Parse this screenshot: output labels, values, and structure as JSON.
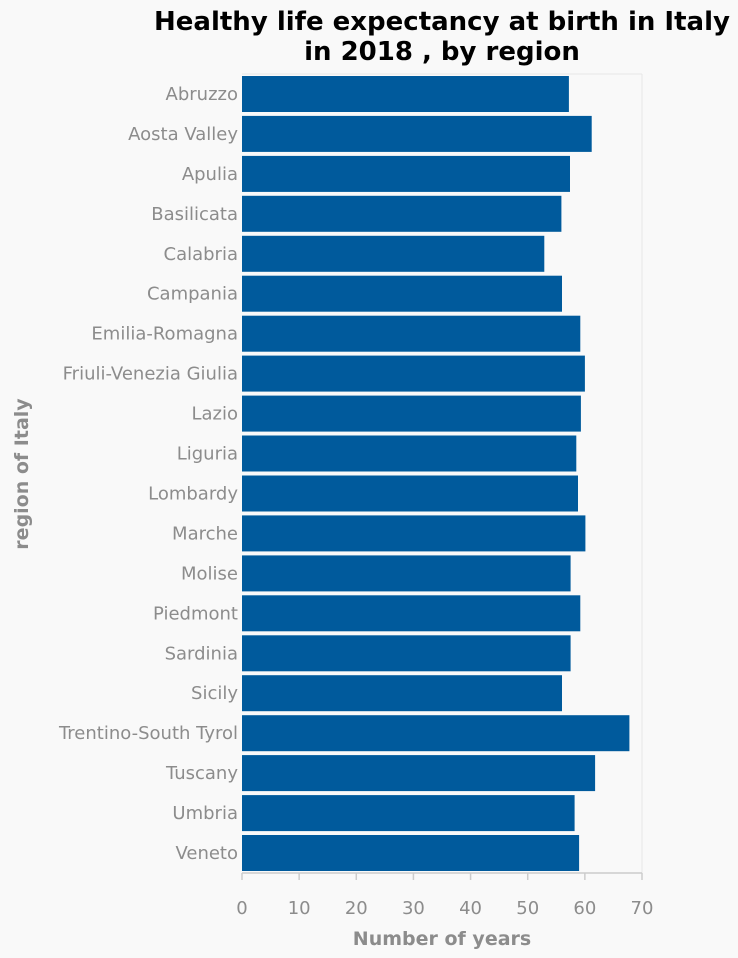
{
  "chart_data": {
    "type": "bar",
    "orientation": "horizontal",
    "title": "Healthy life expectancy at birth in Italy in 2018 , by region",
    "title_lines": [
      "Healthy life expectancy at birth in Italy",
      "in 2018 , by region"
    ],
    "xlabel": "Number of years",
    "ylabel": "region of Italy",
    "xlim": [
      0,
      70
    ],
    "x_ticks": [
      0,
      10,
      20,
      30,
      40,
      50,
      60,
      70
    ],
    "categories": [
      "Abruzzo",
      "Aosta Valley",
      "Apulia",
      "Basilicata",
      "Calabria",
      "Campania",
      "Emilia-Romagna",
      "Friuli-Venezia Giulia",
      "Lazio",
      "Liguria",
      "Lombardy",
      "Marche",
      "Molise",
      "Piedmont",
      "Sardinia",
      "Sicily",
      "Trentino-South Tyrol",
      "Tuscany",
      "Umbria",
      "Veneto"
    ],
    "values": [
      57.2,
      61.2,
      57.4,
      55.9,
      52.9,
      56.0,
      59.2,
      60.0,
      59.3,
      58.5,
      58.8,
      60.1,
      57.5,
      59.2,
      57.5,
      56.0,
      67.8,
      61.8,
      58.2,
      59.0
    ],
    "grid": false,
    "bar_color": "#005a9c",
    "text_color": "#8c8c8c",
    "title_color": "#000000",
    "axis_color": "#cccccc",
    "background_color": "#f9f9f9"
  }
}
